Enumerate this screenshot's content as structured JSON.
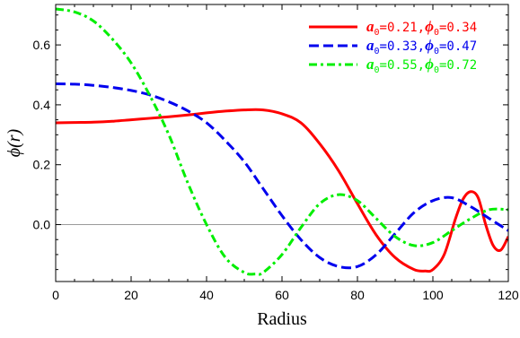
{
  "chart_data": {
    "type": "line",
    "title": "",
    "xlabel": "Radius",
    "ylabel": "ϕ(r)",
    "xlim": [
      0,
      120
    ],
    "ylim": [
      -0.19,
      0.735
    ],
    "xticks": [
      0,
      20,
      40,
      60,
      80,
      100,
      120
    ],
    "yticks": [
      0.0,
      0.2,
      0.4,
      0.6
    ],
    "xtick_labels": [
      "0",
      "20",
      "40",
      "60",
      "80",
      "100",
      "120"
    ],
    "ytick_labels": [
      "0.0",
      "0.2",
      "0.4",
      "0.6"
    ],
    "grid": false,
    "zero_line": true,
    "legend_position": "top-right",
    "series": [
      {
        "name": "a0=0.21, ϕ0=0.34",
        "legend": {
          "a_label": "a",
          "a_sub": "0",
          "a_value": "=0.21,",
          "phi_label": "ϕ",
          "phi_sub": "0",
          "phi_value": "=0.34"
        },
        "color": "#ff0000",
        "style": "solid",
        "x": [
          0,
          5,
          10,
          15,
          20,
          25,
          30,
          35,
          40,
          45,
          50,
          55,
          60,
          65,
          70,
          75,
          80,
          85,
          90,
          95,
          98,
          100,
          103,
          106,
          108,
          110,
          112,
          114,
          116,
          118,
          120
        ],
        "y": [
          0.34,
          0.341,
          0.342,
          0.345,
          0.35,
          0.355,
          0.36,
          0.366,
          0.373,
          0.379,
          0.383,
          0.383,
          0.37,
          0.34,
          0.27,
          0.18,
          0.07,
          -0.035,
          -0.11,
          -0.15,
          -0.155,
          -0.15,
          -0.1,
          0.02,
          0.085,
          0.11,
          0.09,
          0.0,
          -0.07,
          -0.085,
          -0.04
        ]
      },
      {
        "name": "a0=0.33, ϕ0=0.47",
        "legend": {
          "a_label": "a",
          "a_sub": "0",
          "a_value": "=0.33,",
          "phi_label": "ϕ",
          "phi_sub": "0",
          "phi_value": "=0.47"
        },
        "color": "#0000ee",
        "style": "dashed",
        "x": [
          0,
          5,
          10,
          15,
          20,
          25,
          30,
          35,
          40,
          45,
          50,
          55,
          60,
          65,
          70,
          75,
          80,
          85,
          90,
          95,
          100,
          105,
          110,
          115,
          120
        ],
        "y": [
          0.47,
          0.469,
          0.465,
          0.458,
          0.448,
          0.433,
          0.41,
          0.38,
          0.34,
          0.28,
          0.21,
          0.12,
          0.03,
          -0.05,
          -0.11,
          -0.14,
          -0.14,
          -0.1,
          -0.03,
          0.04,
          0.08,
          0.09,
          0.06,
          0.02,
          -0.02
        ]
      },
      {
        "name": "a0=0.55, ϕ0=0.72",
        "legend": {
          "a_label": "a",
          "a_sub": "0",
          "a_value": "=0.55,",
          "phi_label": "ϕ",
          "phi_sub": "0",
          "phi_value": "=0.72"
        },
        "color": "#00ee00",
        "style": "dashdot",
        "x": [
          0,
          5,
          10,
          15,
          20,
          25,
          30,
          35,
          40,
          45,
          50,
          53,
          55,
          60,
          65,
          70,
          75,
          80,
          85,
          90,
          95,
          100,
          105,
          110,
          115,
          120
        ],
        "y": [
          0.72,
          0.71,
          0.68,
          0.62,
          0.54,
          0.43,
          0.3,
          0.14,
          0.0,
          -0.11,
          -0.16,
          -0.165,
          -0.16,
          -0.1,
          -0.01,
          0.07,
          0.1,
          0.08,
          0.02,
          -0.04,
          -0.07,
          -0.06,
          -0.02,
          0.02,
          0.05,
          0.05
        ]
      }
    ]
  }
}
